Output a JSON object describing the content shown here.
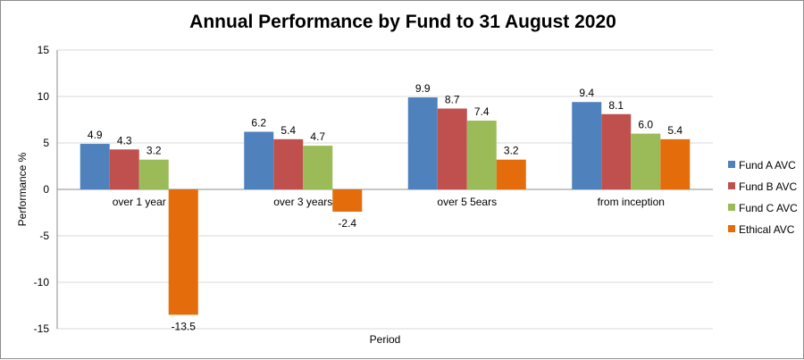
{
  "chart_data": {
    "type": "bar",
    "title": "Annual Performance by Fund to 31 August 2020",
    "xlabel": "Period",
    "ylabel": "Performance %",
    "ylim": [
      -15,
      15
    ],
    "yticks": [
      15,
      10,
      5,
      0,
      -5,
      -10,
      -15
    ],
    "grid": true,
    "legend_position": "right",
    "categories": [
      "over 1 year",
      "over 3 years",
      "over 5 5ears",
      "from inception"
    ],
    "series": [
      {
        "name": "Fund A AVC",
        "color": "#4f81bd",
        "values": [
          4.9,
          6.2,
          9.9,
          9.4
        ],
        "labels": [
          "4.9",
          "6.2",
          "9.9",
          "9.4"
        ]
      },
      {
        "name": "Fund B AVC",
        "color": "#c0504d",
        "values": [
          4.3,
          5.4,
          8.7,
          8.1
        ],
        "labels": [
          "4.3",
          "5.4",
          "8.7",
          "8.1"
        ]
      },
      {
        "name": "Fund C AVC",
        "color": "#9bbb59",
        "values": [
          3.2,
          4.7,
          7.4,
          6.0
        ],
        "labels": [
          "3.2",
          "4.7",
          "7.4",
          "6.0"
        ]
      },
      {
        "name": "Ethical AVC",
        "color": "#e46c0a",
        "values": [
          -13.5,
          -2.4,
          3.2,
          5.4
        ],
        "labels": [
          "-13.5",
          "-2.4",
          "3.2",
          "5.4"
        ]
      }
    ]
  }
}
